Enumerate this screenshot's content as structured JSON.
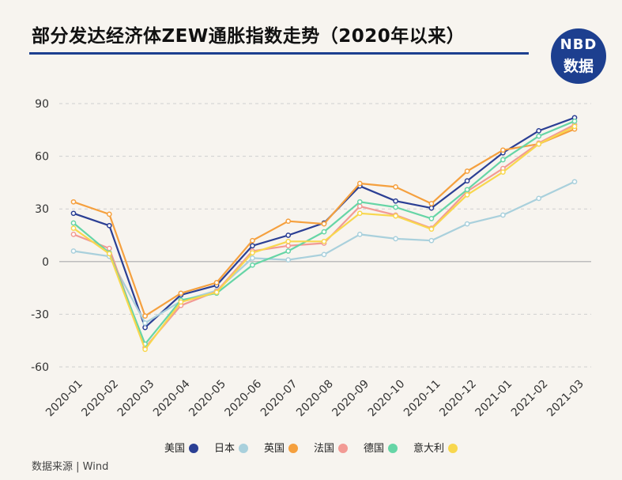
{
  "header": {
    "title": "部分发达经济体ZEW通胀指数走势（2020年以来）",
    "logo_line1": "NBD",
    "logo_line2": "数据"
  },
  "source": "数据来源 | Wind",
  "chart_data": {
    "type": "line",
    "title": "部分发达经济体ZEW通胀指数走势（2020年以来）",
    "xlabel": "",
    "ylabel": "",
    "categories": [
      "2020-01",
      "2020-02",
      "2020-03",
      "2020-04",
      "2020-05",
      "2020-06",
      "2020-07",
      "2020-08",
      "2020-09",
      "2020-10",
      "2020-11",
      "2020-12",
      "2021-01",
      "2021-02",
      "2021-03"
    ],
    "yticks": [
      -60,
      -30,
      0,
      30,
      60,
      90
    ],
    "ylim": [
      -60,
      90
    ],
    "grid": "horizontal-dashed",
    "legend": "bottom",
    "series": [
      {
        "name": "美国",
        "color": "#2b3f94",
        "values": [
          27.5,
          20.5,
          -37.5,
          -19,
          -13.5,
          9,
          15,
          22,
          43,
          34.5,
          30.5,
          46,
          62,
          74.5,
          82
        ]
      },
      {
        "name": "日本",
        "color": "#a9d0dc",
        "values": [
          6,
          3,
          -35,
          -22.5,
          -16.5,
          2,
          1,
          4,
          15.5,
          13,
          12,
          21.5,
          26.5,
          36,
          45.5
        ]
      },
      {
        "name": "英国",
        "color": "#f5a03e",
        "values": [
          34,
          27,
          -31,
          -18,
          -12,
          12,
          23,
          21.5,
          44.5,
          42.5,
          33,
          51.5,
          63.5,
          67,
          75.5
        ]
      },
      {
        "name": "法国",
        "color": "#f29a94",
        "values": [
          15.5,
          7.5,
          -49,
          -25,
          -17,
          6,
          9,
          10.5,
          31.5,
          26.5,
          19,
          40,
          53,
          67.5,
          78
        ]
      },
      {
        "name": "德国",
        "color": "#66d5a6",
        "values": [
          22,
          5,
          -47,
          -22,
          -18,
          -2,
          6,
          17,
          34,
          31,
          24.5,
          41,
          58,
          71.5,
          80
        ]
      },
      {
        "name": "意大利",
        "color": "#f8d74e",
        "values": [
          19,
          4.5,
          -50,
          -23,
          -17.5,
          5,
          11.5,
          11.5,
          27.5,
          26,
          18.5,
          38,
          51,
          67,
          77
        ]
      }
    ]
  }
}
